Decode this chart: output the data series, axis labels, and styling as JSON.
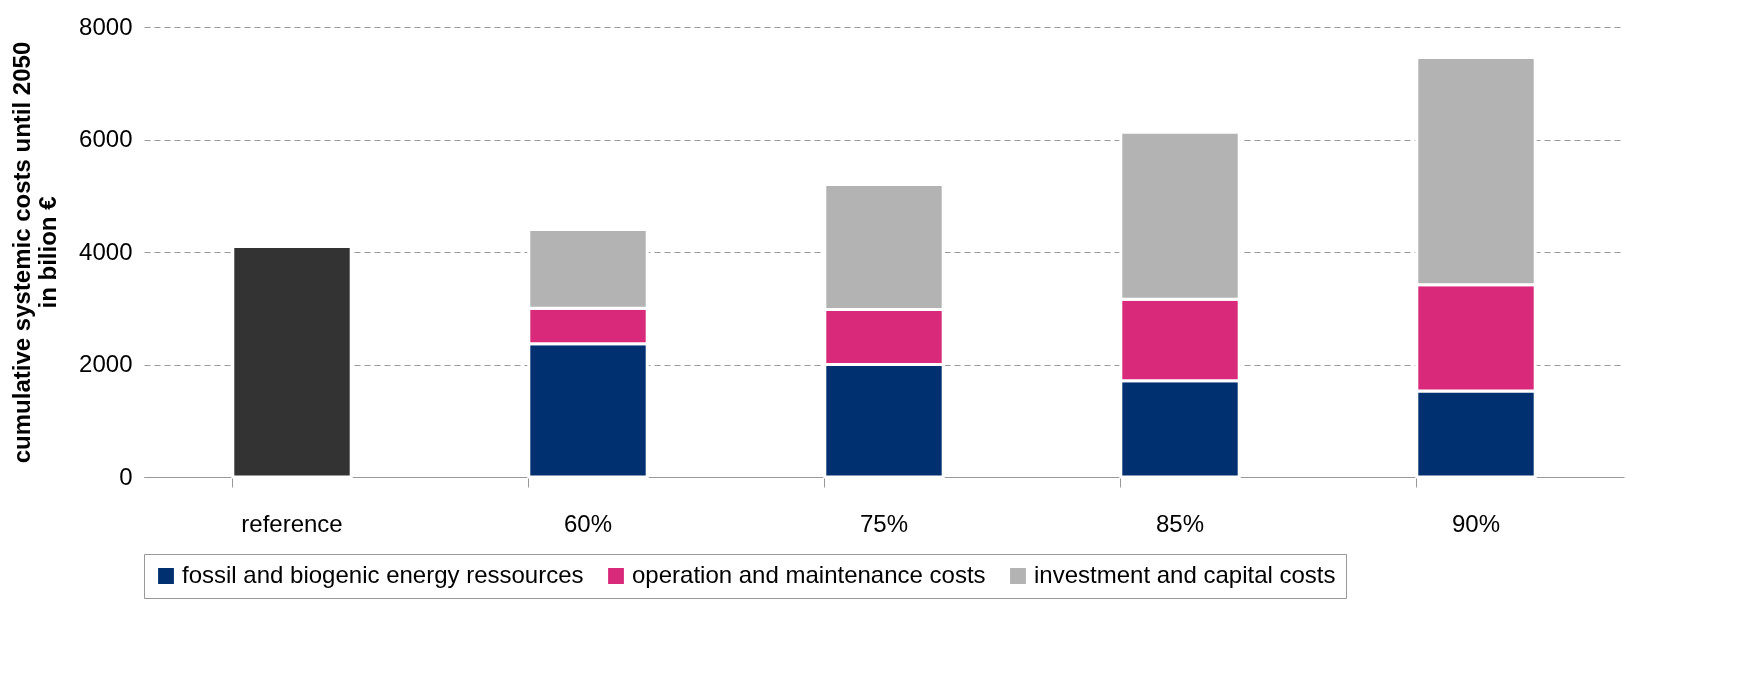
{
  "chart_data": {
    "type": "bar",
    "stacked": true,
    "categories": [
      "reference",
      "60%",
      "75%",
      "85%",
      "90%"
    ],
    "ylabel": "cumulative systemic costs until 2050 in bilion €",
    "series": [
      {
        "color": "#333333",
        "values": [
          4100,
          null,
          null,
          null,
          null
        ]
      },
      {
        "name": "fossil and biogenic energy ressources",
        "color": "#003070",
        "values": [
          null,
          2370,
          2000,
          1710,
          1530
        ]
      },
      {
        "name": "operation and maintenance costs",
        "color": "#d9297a",
        "values": [
          null,
          630,
          980,
          1450,
          1890
        ]
      },
      {
        "name": "investment and capital costs",
        "color": "#b3b3b3",
        "values": [
          null,
          1400,
          2220,
          2970,
          4040
        ]
      }
    ],
    "ylim": [
      0,
      8000
    ],
    "yticks": [
      0,
      2000,
      4000,
      6000,
      8000
    ],
    "grid": "y",
    "legend": "bottom"
  }
}
